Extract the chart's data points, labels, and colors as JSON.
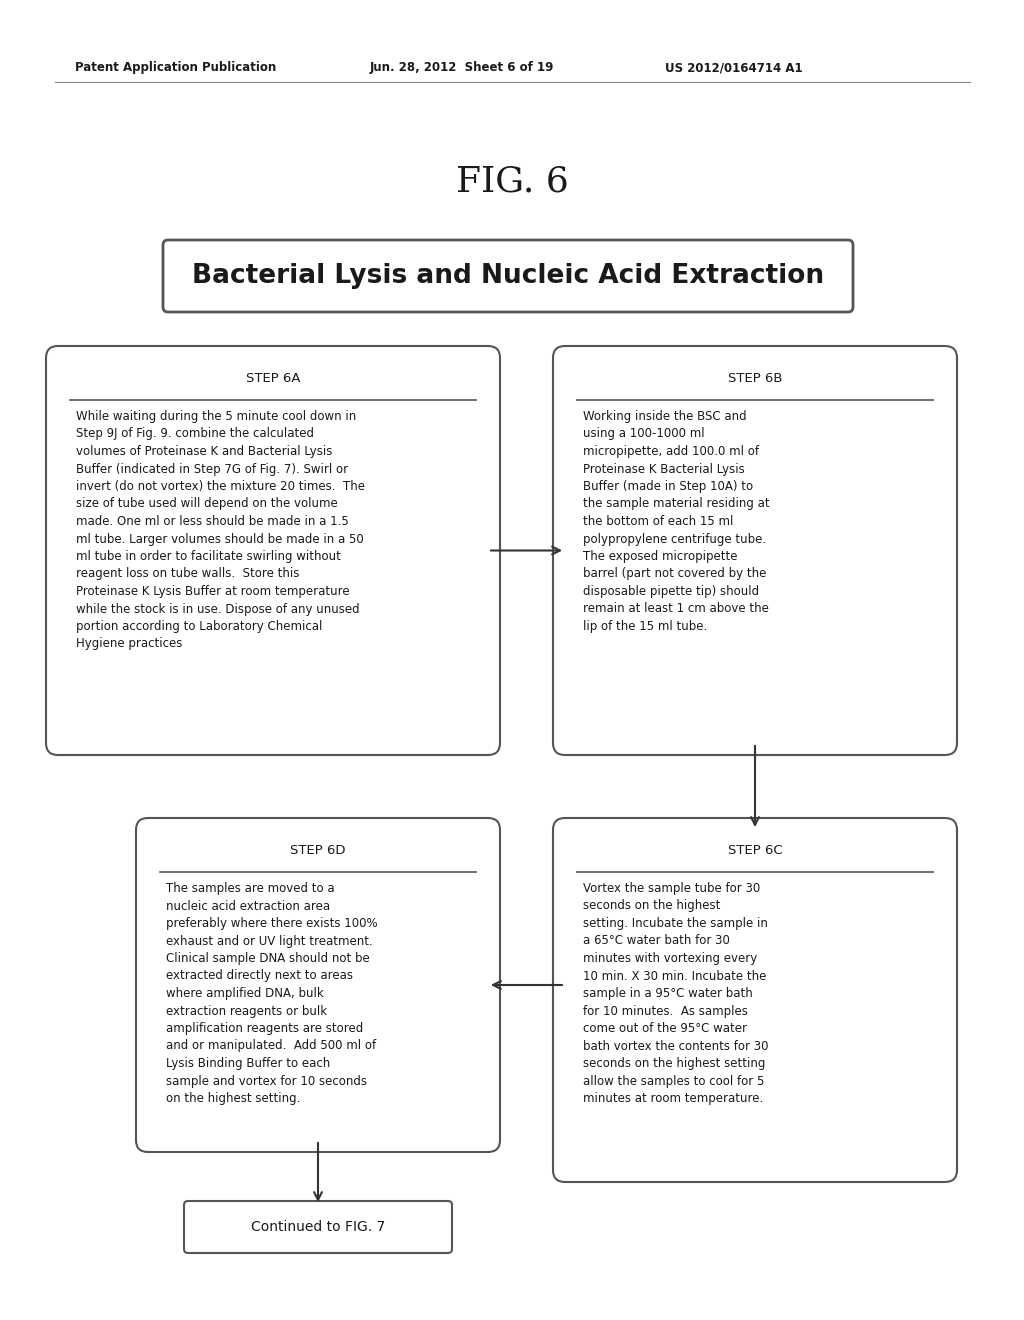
{
  "bg_color": "#ffffff",
  "header_left": "Patent Application Publication",
  "header_mid": "Jun. 28, 2012  Sheet 6 of 19",
  "header_right": "US 2012/0164714 A1",
  "fig_label": "FIG. 6",
  "title_box_text": "Bacterial Lysis and Nucleic Acid Extraction",
  "step6A_title": "STEP 6A",
  "step6A_body": "While waiting during the 5 minute cool down in\nStep 9J of Fig. 9. combine the calculated\nvolumes of Proteinase K and Bacterial Lysis\nBuffer (indicated in Step 7G of Fig. 7). Swirl or\ninvert (do not vortex) the mixture 20 times.  The\nsize of tube used will depend on the volume\nmade. One ml or less should be made in a 1.5\nml tube. Larger volumes should be made in a 50\nml tube in order to facilitate swirling without\nreagent loss on tube walls.  Store this\nProteinase K Lysis Buffer at room temperature\nwhile the stock is in use. Dispose of any unused\nportion according to Laboratory Chemical\nHygiene practices",
  "step6B_title": "STEP 6B",
  "step6B_body": "Working inside the BSC and\nusing a 100-1000 ml\nmicropipette, add 100.0 ml of\nProteinase K Bacterial Lysis\nBuffer (made in Step 10A) to\nthe sample material residing at\nthe bottom of each 15 ml\npolypropylene centrifuge tube.\nThe exposed micropipette\nbarrel (part not covered by the\ndisposable pipette tip) should\nremain at least 1 cm above the\nlip of the 15 ml tube.",
  "step6C_title": "STEP 6C",
  "step6C_body": "Vortex the sample tube for 30\nseconds on the highest\nsetting. Incubate the sample in\na 65°C water bath for 30\nminutes with vortexing every\n10 min. X 30 min. Incubate the\nsample in a 95°C water bath\nfor 10 minutes.  As samples\ncome out of the 95°C water\nbath vortex the contents for 30\nseconds on the highest setting\nallow the samples to cool for 5\nminutes at room temperature.",
  "step6D_title": "STEP 6D",
  "step6D_body": "The samples are moved to a\nnucleic acid extraction area\npreferably where there exists 100%\nexhaust and or UV light treatment.\nClinical sample DNA should not be\nextracted directly next to areas\nwhere amplified DNA, bulk\nextraction reagents or bulk\namplification reagents are stored\nand or manipulated.  Add 500 ml of\nLysis Binding Buffer to each\nsample and vortex for 10 seconds\non the highest setting.",
  "continued_text": "Continued to FIG. 7",
  "box_edge_color": "#555555",
  "text_color": "#1a1a1a",
  "arrow_color": "#333333"
}
